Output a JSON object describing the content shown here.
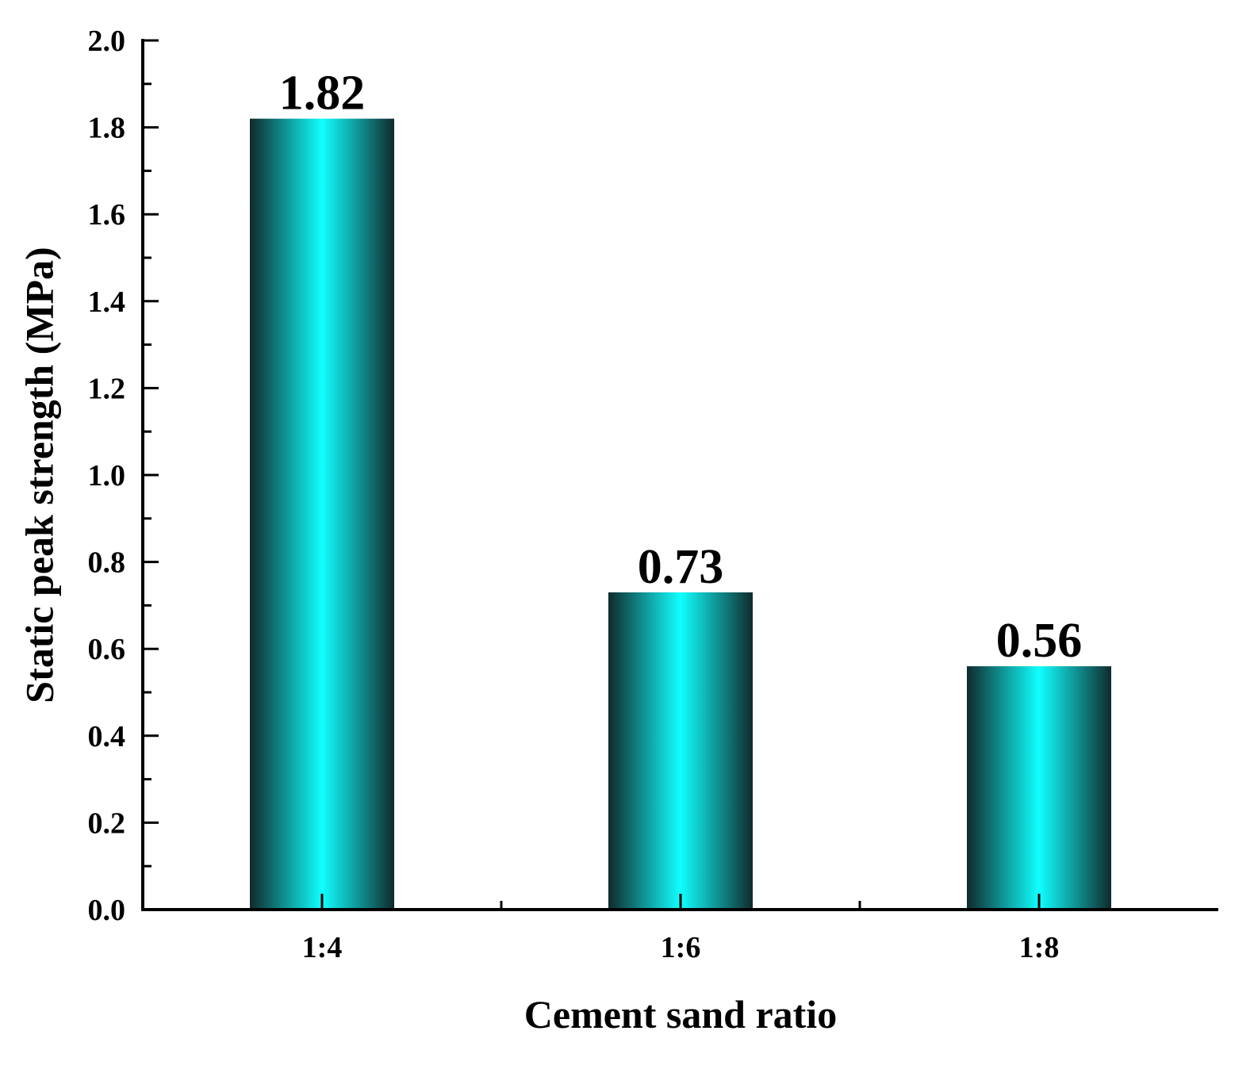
{
  "chart_data": {
    "type": "bar",
    "categories": [
      "1:4",
      "1:6",
      "1:8"
    ],
    "values": [
      1.82,
      0.73,
      0.56
    ],
    "value_labels": [
      "1.82",
      "0.73",
      "0.56"
    ],
    "title": "",
    "xlabel": "Cement sand ratio",
    "ylabel": "Static peak strength (MPa)",
    "ylim": [
      0.0,
      2.0
    ],
    "yticks": [
      "0.0",
      "0.2",
      "0.4",
      "0.6",
      "0.8",
      "1.0",
      "1.2",
      "1.4",
      "1.6",
      "1.8",
      "2.0"
    ],
    "grid": false,
    "legend": "none",
    "colors": {
      "bar_center": "#10ffff",
      "bar_edge": "#102a2c",
      "axis": "#000000"
    }
  }
}
